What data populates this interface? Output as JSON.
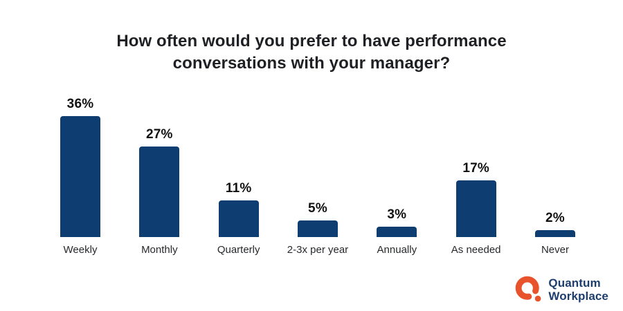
{
  "title": "How often would you prefer to have performance conversations with your manager?",
  "chart_data": {
    "type": "bar",
    "title": "How often would you prefer to have performance conversations with your manager?",
    "categories": [
      "Weekly",
      "Monthly",
      "Quarterly",
      "2-3x per year",
      "Annually",
      "As needed",
      "Never"
    ],
    "values": [
      36,
      27,
      11,
      5,
      3,
      17,
      2
    ],
    "value_labels": [
      "36%",
      "27%",
      "11%",
      "5%",
      "3%",
      "17%",
      "2%"
    ],
    "xlabel": "",
    "ylabel": "",
    "ylim": [
      0,
      40
    ],
    "grid": false,
    "legend": false,
    "bar_color": "#0e3d72"
  },
  "colors": {
    "bar": "#0e3d72",
    "title_text": "#1f2023",
    "logo_navy": "#1d3e6e",
    "logo_orange": "#e8522c"
  },
  "logo": {
    "name": "Quantum Workplace",
    "line1": "Quantum",
    "line2": "Workplace"
  }
}
